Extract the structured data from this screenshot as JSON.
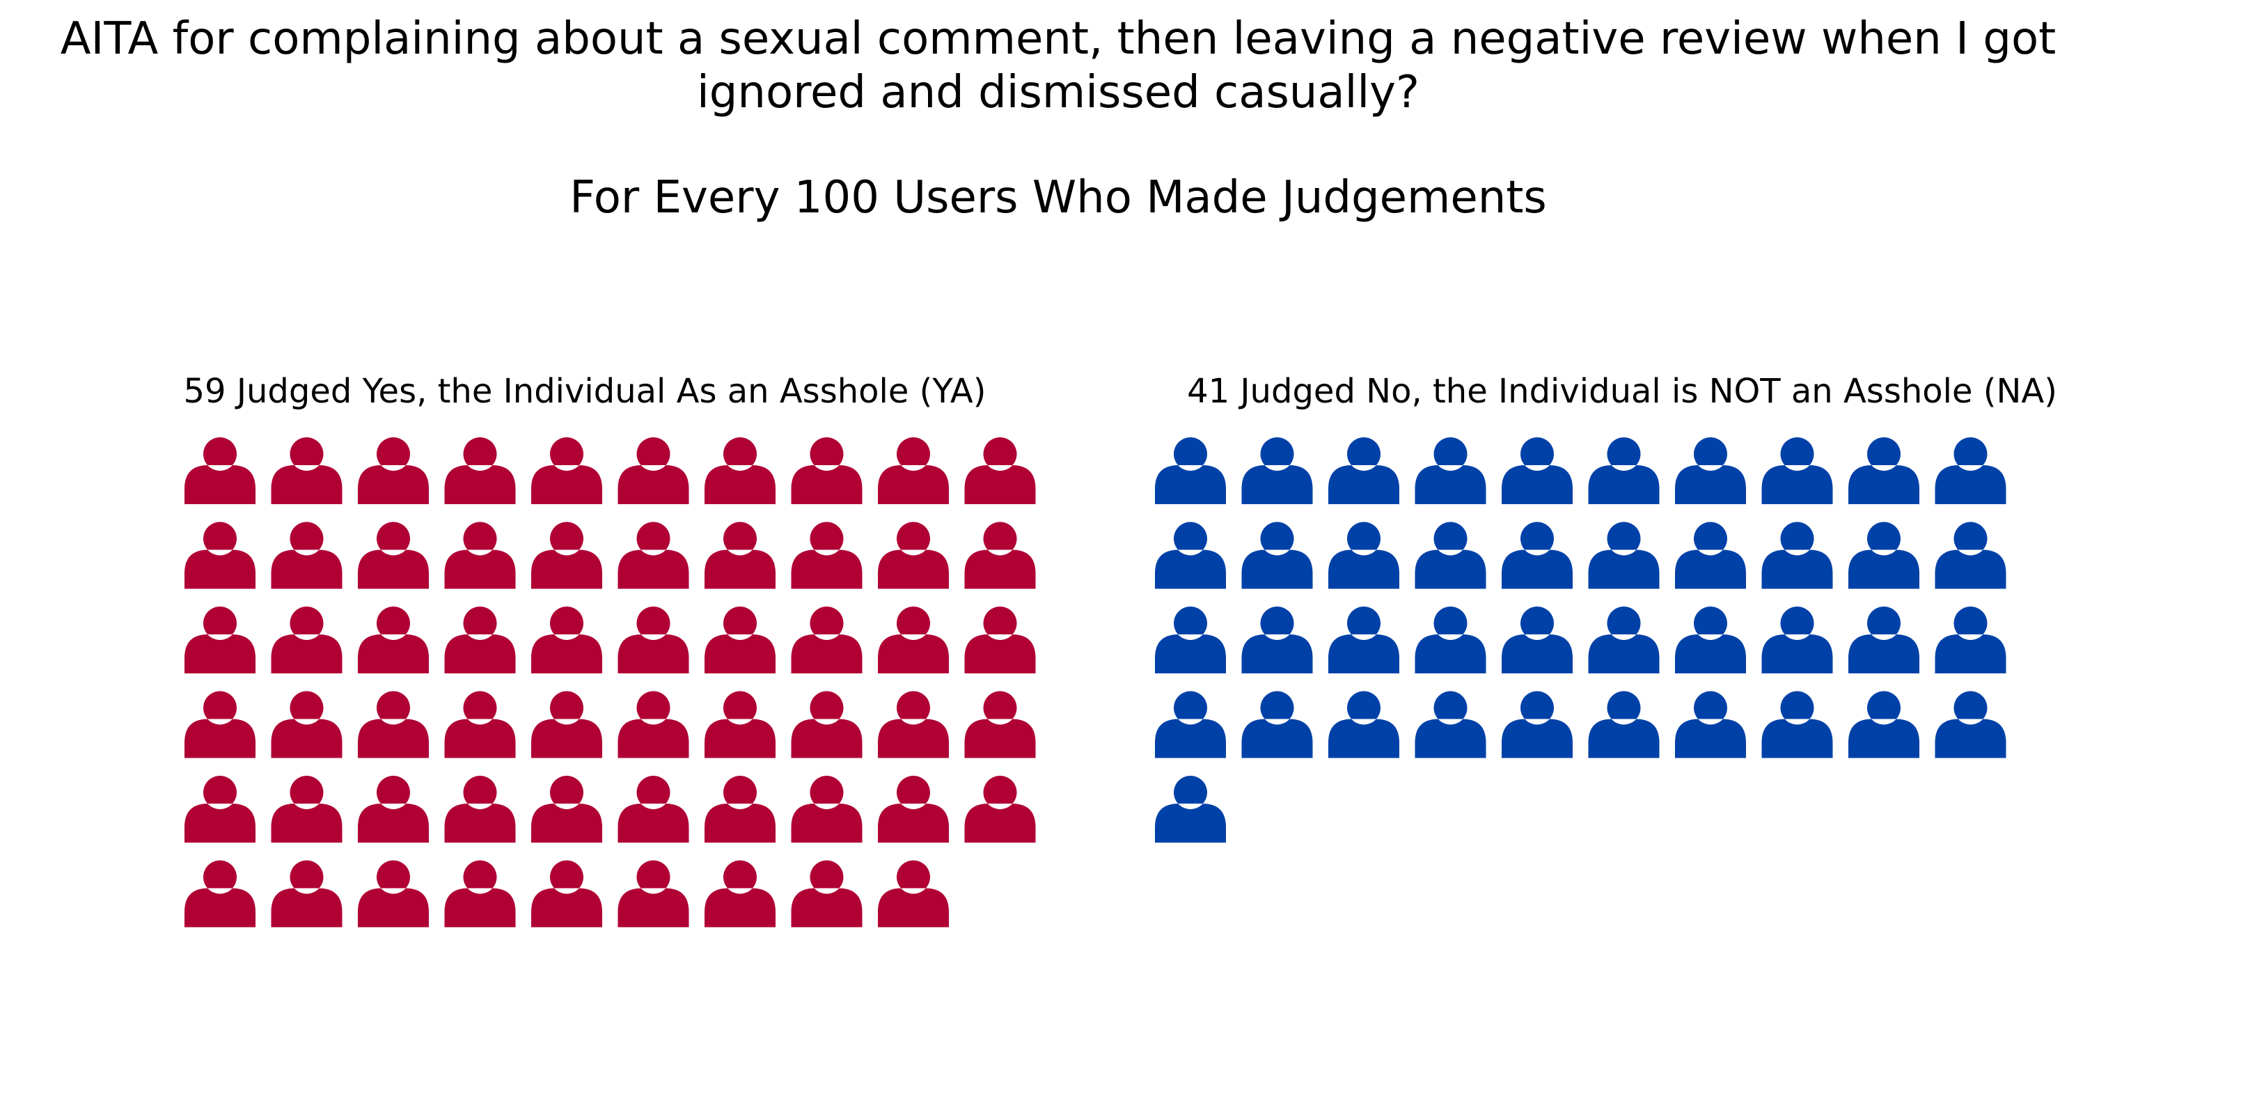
{
  "chart_data": {
    "type": "waffle",
    "title_lines": [
      "AITA for complaining about a sexual comment, then leaving a negative review when I got",
      "ignored and dismissed casually?"
    ],
    "subtitle": "For Every 100 Users Who Made Judgements",
    "columns": 10,
    "series": [
      {
        "name": "59 Judged Yes, the Individual As an Asshole (YA)",
        "value": 59,
        "color": "#b00034",
        "icon": "person-icon"
      },
      {
        "name": "41 Judged No, the Individual is NOT an Asshole (NA)",
        "value": 41,
        "color": "#0041a8",
        "icon": "person-icon"
      }
    ]
  }
}
